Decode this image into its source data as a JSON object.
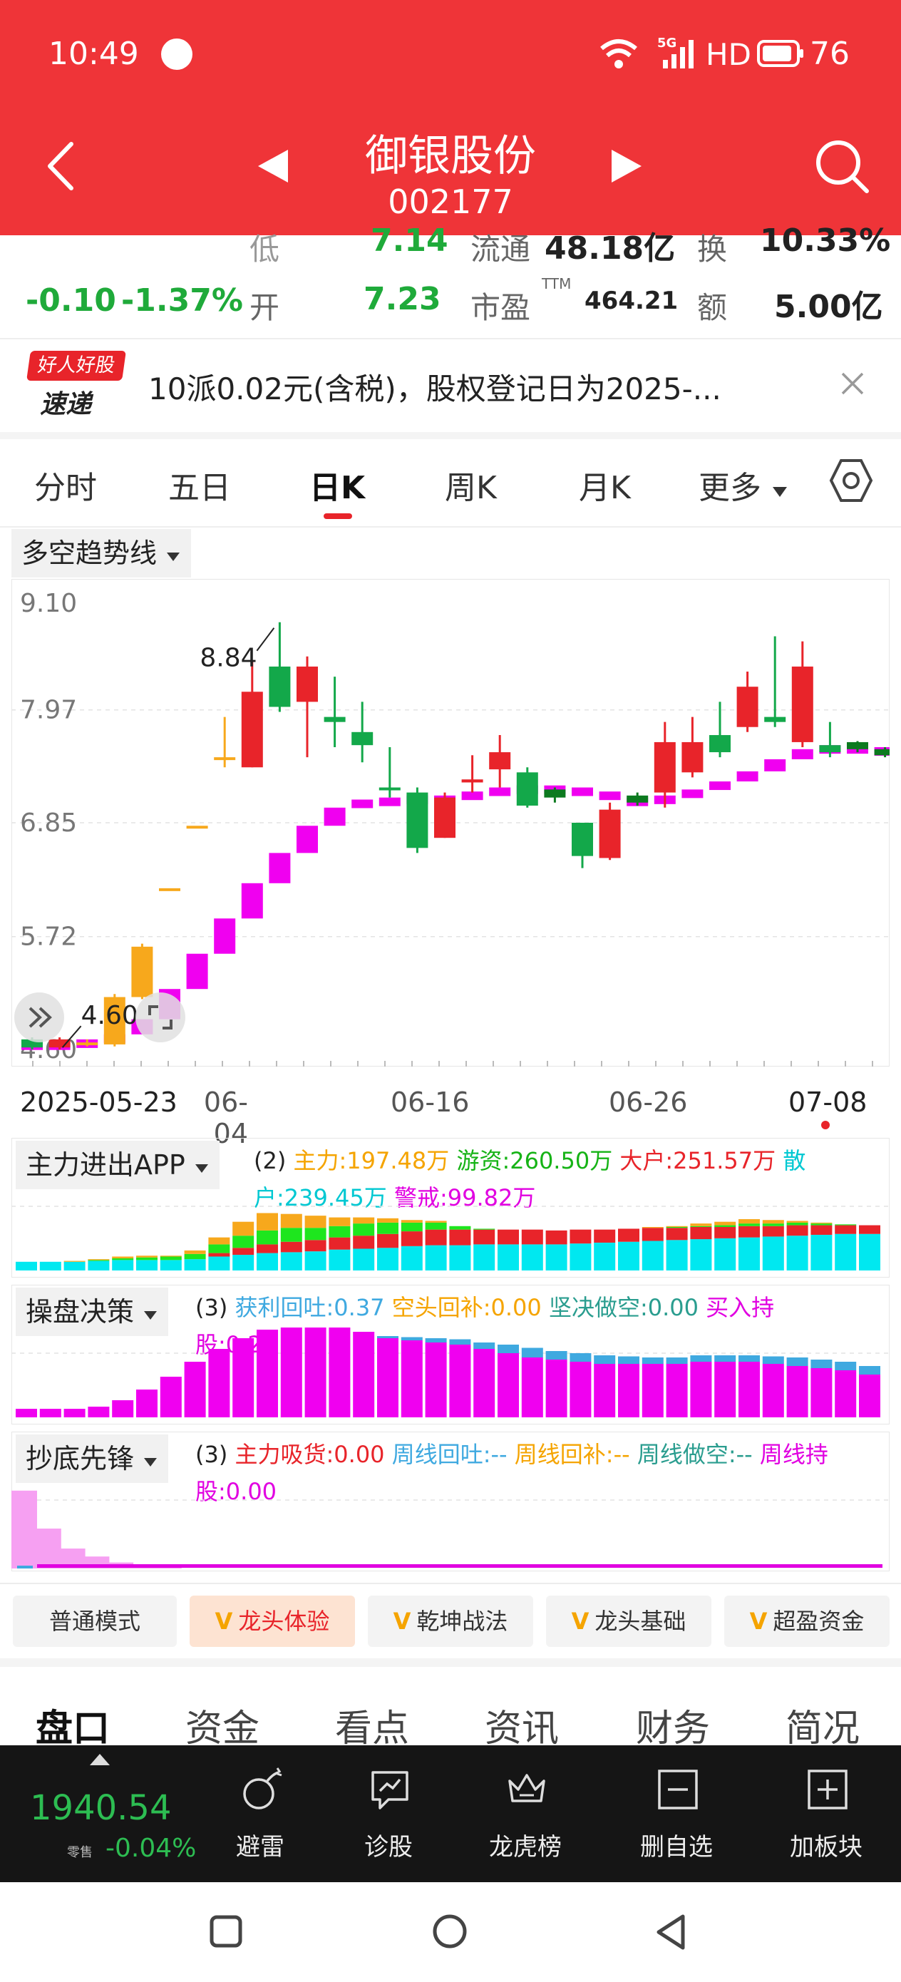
{
  "status": {
    "time": "10:49",
    "network": "5G",
    "hd": "HD",
    "battery": "76"
  },
  "header": {
    "title": "御银股份",
    "code": "002177"
  },
  "quote": {
    "change": "-0.10",
    "change_pct": "-1.37%",
    "low_label": "低",
    "low": "7.14",
    "open_label": "开",
    "open": "7.23",
    "float_label": "流通",
    "float_value": "48.18亿",
    "pe_label": "市盈",
    "pe_sup": "TTM",
    "pe_value": "464.21",
    "turnover_label": "换",
    "turnover": "10.33%",
    "amount_label": "额",
    "amount": "5.00亿"
  },
  "banner": {
    "badge_top": "好人好股",
    "badge_bottom": "速递",
    "text": "10派0.02元(含税)，股权登记日为2025-..."
  },
  "tabs": [
    "分时",
    "五日",
    "日K",
    "周K",
    "月K",
    "更多"
  ],
  "active_tab": 2,
  "chart_selector": "多空趋势线",
  "chart_data": {
    "type": "candlestick",
    "y_ticks": [
      "9.10",
      "7.97",
      "6.85",
      "5.72",
      "4.60"
    ],
    "ylim": [
      4.6,
      9.1
    ],
    "x_labels": [
      "2025-05-23",
      "06-04",
      "06-16",
      "06-26",
      "07-08"
    ],
    "annotations": {
      "high": "8.84",
      "low": "4.60"
    },
    "candles": [
      {
        "o": 4.62,
        "c": 4.7,
        "h": 4.72,
        "l": 4.6,
        "col": "green"
      },
      {
        "o": 4.7,
        "c": 4.62,
        "h": 4.72,
        "l": 4.6,
        "col": "red"
      },
      {
        "o": 4.65,
        "c": 4.67,
        "h": 4.7,
        "l": 4.63,
        "col": "orange"
      },
      {
        "o": 4.65,
        "c": 5.12,
        "h": 5.15,
        "l": 4.63,
        "col": "orange"
      },
      {
        "o": 5.12,
        "c": 5.62,
        "h": 5.65,
        "l": 5.1,
        "col": "orange"
      },
      {
        "o": 6.2,
        "c": 6.2,
        "h": 6.2,
        "l": 6.2,
        "col": "orange"
      },
      {
        "o": 6.82,
        "c": 6.82,
        "h": 6.82,
        "l": 6.82,
        "col": "orange"
      },
      {
        "o": 7.5,
        "c": 7.5,
        "h": 7.9,
        "l": 7.4,
        "col": "orange"
      },
      {
        "o": 7.4,
        "c": 8.15,
        "h": 8.45,
        "l": 7.4,
        "col": "red"
      },
      {
        "o": 8.4,
        "c": 8.0,
        "h": 8.84,
        "l": 7.95,
        "col": "green"
      },
      {
        "o": 8.05,
        "c": 8.4,
        "h": 8.5,
        "l": 7.5,
        "col": "red"
      },
      {
        "o": 7.9,
        "c": 7.85,
        "h": 8.3,
        "l": 7.6,
        "col": "green"
      },
      {
        "o": 7.75,
        "c": 7.62,
        "h": 8.05,
        "l": 7.45,
        "col": "green"
      },
      {
        "o": 7.2,
        "c": 7.2,
        "h": 7.6,
        "l": 7.1,
        "col": "green"
      },
      {
        "o": 7.15,
        "c": 6.6,
        "h": 7.2,
        "l": 6.55,
        "col": "green"
      },
      {
        "o": 6.7,
        "c": 7.1,
        "h": 7.15,
        "l": 6.7,
        "col": "red"
      },
      {
        "o": 7.25,
        "c": 7.28,
        "h": 7.52,
        "l": 7.15,
        "col": "red"
      },
      {
        "o": 7.38,
        "c": 7.55,
        "h": 7.72,
        "l": 7.2,
        "col": "red"
      },
      {
        "o": 7.35,
        "c": 7.02,
        "h": 7.4,
        "l": 7.0,
        "col": "green"
      },
      {
        "o": 7.18,
        "c": 7.1,
        "h": 7.2,
        "l": 7.05,
        "col": "darkgreen"
      },
      {
        "o": 6.85,
        "c": 6.52,
        "h": 6.85,
        "l": 6.4,
        "col": "green"
      },
      {
        "o": 6.5,
        "c": 6.98,
        "h": 7.05,
        "l": 6.48,
        "col": "red"
      },
      {
        "o": 7.12,
        "c": 7.05,
        "h": 7.15,
        "l": 7.02,
        "col": "darkgreen"
      },
      {
        "o": 7.15,
        "c": 7.65,
        "h": 7.85,
        "l": 7.0,
        "col": "red"
      },
      {
        "o": 7.35,
        "c": 7.65,
        "h": 7.9,
        "l": 7.3,
        "col": "red"
      },
      {
        "o": 7.72,
        "c": 7.55,
        "h": 8.05,
        "l": 7.5,
        "col": "green"
      },
      {
        "o": 7.8,
        "c": 8.2,
        "h": 8.35,
        "l": 7.75,
        "col": "red"
      },
      {
        "o": 7.9,
        "c": 7.85,
        "h": 8.7,
        "l": 7.8,
        "col": "green"
      },
      {
        "o": 7.65,
        "c": 8.4,
        "h": 8.65,
        "l": 7.6,
        "col": "red"
      },
      {
        "o": 7.62,
        "c": 7.55,
        "h": 7.85,
        "l": 7.5,
        "col": "green"
      },
      {
        "o": 7.65,
        "c": 7.58,
        "h": 7.66,
        "l": 7.55,
        "col": "darkgreen"
      },
      {
        "o": 7.58,
        "c": 7.52,
        "h": 7.6,
        "l": 7.5,
        "col": "darkgreen"
      },
      {
        "o": 7.3,
        "c": 7.25,
        "h": 7.55,
        "l": 6.95,
        "col": "green"
      },
      {
        "o": 6.92,
        "c": 7.35,
        "h": 7.42,
        "l": 6.9,
        "col": "red"
      },
      {
        "o": 7.5,
        "c": 7.45,
        "h": 7.52,
        "l": 7.44,
        "col": "darkgreen"
      },
      {
        "o": 7.28,
        "c": 7.28,
        "h": 7.38,
        "l": 7.2,
        "col": "green"
      }
    ],
    "trend": [
      4.68,
      4.68,
      4.7,
      4.75,
      4.9,
      5.2,
      5.55,
      5.9,
      6.25,
      6.55,
      6.82,
      7.0,
      7.08,
      7.1,
      7.12,
      7.12,
      7.16,
      7.2,
      7.22,
      7.2,
      7.16,
      7.1,
      7.1,
      7.12,
      7.18,
      7.26,
      7.36,
      7.48,
      7.58,
      7.62,
      7.6,
      7.58,
      7.56,
      7.54,
      7.52,
      7.5
    ]
  },
  "ind1": {
    "title": "主力进出APP",
    "legend": [
      {
        "t": "(2) ",
        "c": "#222"
      },
      {
        "t": "主力:197.48万 ",
        "c": "#f5a400"
      },
      {
        "t": "游资:260.50万 ",
        "c": "#16b316"
      },
      {
        "t": "大户:251.57万 ",
        "c": "#e8242a"
      },
      {
        "t": "散户:239.45万 ",
        "c": "#00c8d2"
      },
      {
        "t": "警戒:99.82万",
        "c": "#e100e1"
      }
    ],
    "cyan": [
      10,
      10,
      10,
      11,
      12,
      12,
      12,
      13,
      16,
      18,
      20,
      21,
      22,
      24,
      25,
      26,
      28,
      29,
      29,
      30,
      30,
      30,
      30,
      31,
      32,
      33,
      34,
      35,
      36,
      37,
      38,
      39,
      40,
      41,
      42,
      42
    ],
    "red": [
      0,
      0,
      0,
      0,
      0,
      0,
      0,
      0,
      4,
      8,
      10,
      12,
      13,
      14,
      15,
      16,
      17,
      18,
      18,
      17,
      17,
      17,
      16,
      16,
      15,
      15,
      15,
      14,
      14,
      13,
      13,
      12,
      12,
      11,
      10,
      10
    ],
    "green": [
      0,
      0,
      0,
      1,
      2,
      3,
      4,
      6,
      10,
      14,
      16,
      16,
      14,
      13,
      14,
      13,
      10,
      8,
      4,
      1,
      0,
      0,
      0,
      0,
      0,
      0,
      0,
      1,
      1,
      2,
      3,
      3,
      3,
      2,
      1,
      0
    ],
    "orange": [
      0,
      0,
      1,
      1,
      2,
      2,
      1,
      4,
      8,
      16,
      20,
      16,
      14,
      10,
      7,
      5,
      3,
      2,
      0,
      0,
      0,
      0,
      0,
      0,
      0,
      0,
      1,
      1,
      3,
      4,
      5,
      4,
      2,
      1,
      0,
      0
    ]
  },
  "ind2": {
    "title": "操盘决策",
    "legend": [
      {
        "t": "(3) ",
        "c": "#222"
      },
      {
        "t": "获利回吐:0.37 ",
        "c": "#3fa9e0"
      },
      {
        "t": "空头回补:0.00 ",
        "c": "#f5a400"
      },
      {
        "t": "坚决做空:0.00 ",
        "c": "#2a9d8f"
      },
      {
        "t": "买入持股:0.29",
        "c": "#e100e1"
      }
    ],
    "magenta": [
      8,
      8,
      8,
      10,
      16,
      26,
      38,
      52,
      64,
      74,
      82,
      84,
      84,
      84,
      80,
      74,
      72,
      70,
      68,
      64,
      60,
      56,
      54,
      52,
      50,
      50,
      50,
      50,
      52,
      52,
      52,
      50,
      48,
      46,
      44,
      40
    ],
    "blue": [
      0,
      0,
      0,
      0,
      0,
      0,
      0,
      0,
      0,
      0,
      0,
      0,
      0,
      0,
      0,
      2,
      3,
      4,
      5,
      6,
      8,
      9,
      8,
      8,
      8,
      7,
      6,
      6,
      6,
      6,
      6,
      7,
      8,
      8,
      8,
      8
    ]
  },
  "ind3": {
    "title": "抄底先锋",
    "legend": [
      {
        "t": "(3) ",
        "c": "#222"
      },
      {
        "t": "主力吸货:0.00 ",
        "c": "#e8242a"
      },
      {
        "t": "周线回吐:-- ",
        "c": "#3fa9e0"
      },
      {
        "t": "周线回补:-- ",
        "c": "#f5a400"
      },
      {
        "t": "周线做空:-- ",
        "c": "#2a9d8f"
      },
      {
        "t": "周线持股:0.00",
        "c": "#e100e1"
      }
    ],
    "pink": [
      78,
      40,
      20,
      12,
      6,
      3,
      1,
      0,
      0,
      0,
      0,
      0,
      0,
      0,
      0,
      0,
      0,
      0,
      0,
      0,
      0,
      0,
      0,
      0,
      0,
      0,
      0,
      0,
      0,
      0,
      0,
      0,
      0,
      0,
      0,
      0
    ]
  },
  "modes": [
    {
      "label": "普通模式",
      "active": false,
      "v": false
    },
    {
      "label": "龙头体验",
      "active": true,
      "v": true
    },
    {
      "label": "乾坤战法",
      "active": false,
      "v": true
    },
    {
      "label": "龙头基础",
      "active": false,
      "v": true
    },
    {
      "label": "超盈资金",
      "active": false,
      "v": true
    }
  ],
  "bottom_tabs": [
    "盘口",
    "资金",
    "看点",
    "资讯",
    "财务",
    "简况"
  ],
  "index": {
    "value": "1940.54",
    "tag": "零售",
    "change": "-0.04%"
  },
  "actions": [
    "避雷",
    "诊股",
    "龙虎榜",
    "删自选",
    "加板块"
  ]
}
